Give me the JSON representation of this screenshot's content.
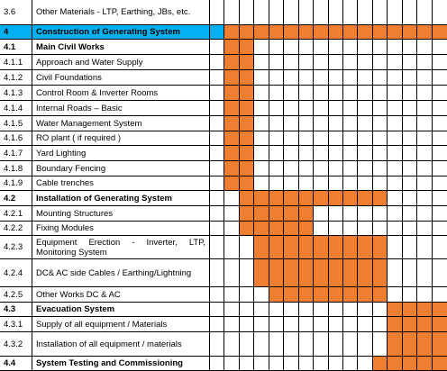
{
  "table": {
    "rows": [
      {
        "id": "3.6",
        "label": "Other Materials - LTP, Earthing, JBs, etc."
      },
      {
        "id": "4",
        "label": "Construction of Generating System"
      },
      {
        "id": "4.1",
        "label": "Main Civil Works"
      },
      {
        "id": "4.1.1",
        "label": "Approach and Water Supply"
      },
      {
        "id": "4.1.2",
        "label": "Civil Foundations"
      },
      {
        "id": "4.1.3",
        "label": "Control Room & Inverter Rooms"
      },
      {
        "id": "4.1.4",
        "label": "Internal Roads – Basic"
      },
      {
        "id": "4.1.5",
        "label": "Water Management System"
      },
      {
        "id": "4.1.6",
        "label": "RO plant ( if required )"
      },
      {
        "id": "4.1.7",
        "label": "Yard Lighting"
      },
      {
        "id": "4.1.8",
        "label": "Boundary Fencing"
      },
      {
        "id": "4.1.9",
        "label": "Cable trenches"
      },
      {
        "id": "4.2",
        "label": "Installation of Generating System"
      },
      {
        "id": "4.2.1",
        "label": "Mounting Structures"
      },
      {
        "id": "4.2.2",
        "label": "Fixing Modules"
      },
      {
        "id": "4.2.3",
        "label": "Equipment Erection - Inverter, LTP, Monitoring System"
      },
      {
        "id": "4.2.4",
        "label": "DC& AC side Cables / Earthing/Lightning"
      },
      {
        "id": "4.2.5",
        "label": "Other Works DC & AC"
      },
      {
        "id": "4.3",
        "label": "Evacuation System"
      },
      {
        "id": "4.3.1",
        "label": "Supply of all equipment / Materials"
      },
      {
        "id": "4.3.2",
        "label": "Installation of all equipment / materials"
      },
      {
        "id": "4.4",
        "label": "System Testing and Commissioning"
      }
    ]
  }
}
